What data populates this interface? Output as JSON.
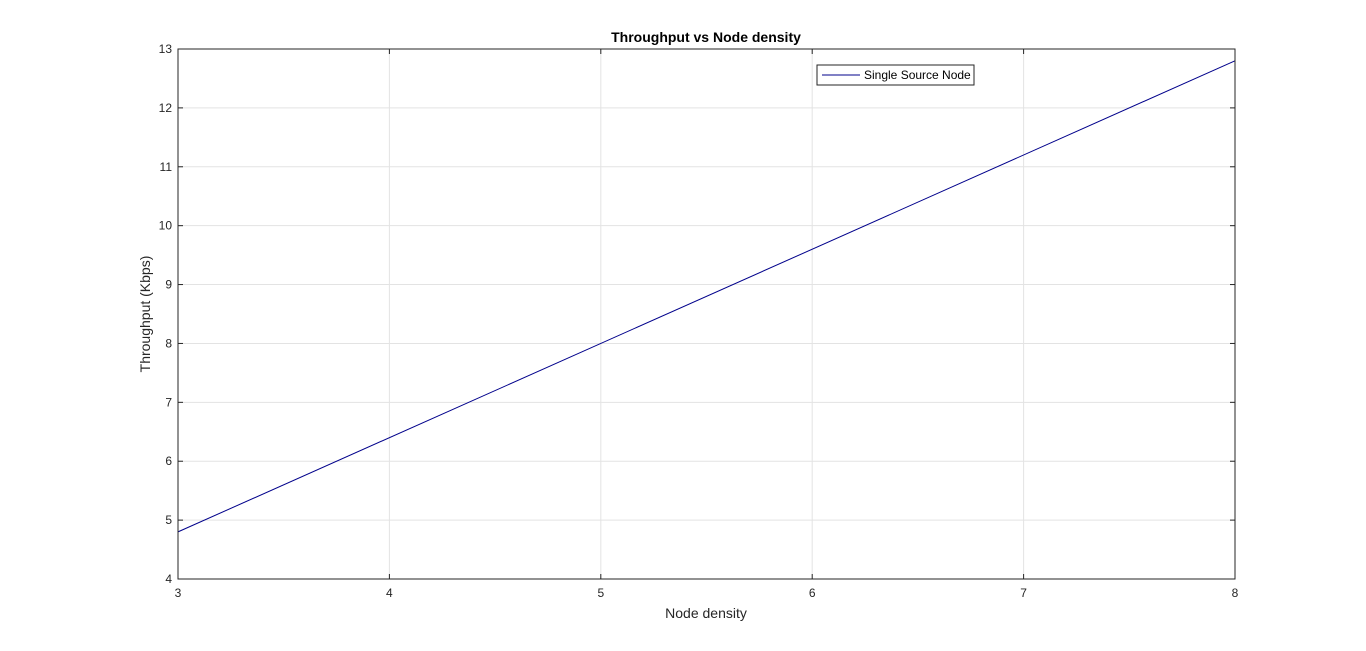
{
  "chart_data": {
    "type": "line",
    "title": "Throughput vs Node density",
    "xlabel": "Node density",
    "ylabel": "Throughput (Kbps)",
    "xlim": [
      3,
      8
    ],
    "ylim": [
      4,
      13
    ],
    "xticks": [
      3,
      4,
      5,
      6,
      7,
      8
    ],
    "yticks": [
      4,
      5,
      6,
      7,
      8,
      9,
      10,
      11,
      12,
      13
    ],
    "grid": true,
    "legend_position": "top-right",
    "series": [
      {
        "name": "Single Source Node",
        "color": "#00008b",
        "x": [
          3,
          8
        ],
        "y": [
          4.8,
          12.8
        ]
      }
    ]
  }
}
